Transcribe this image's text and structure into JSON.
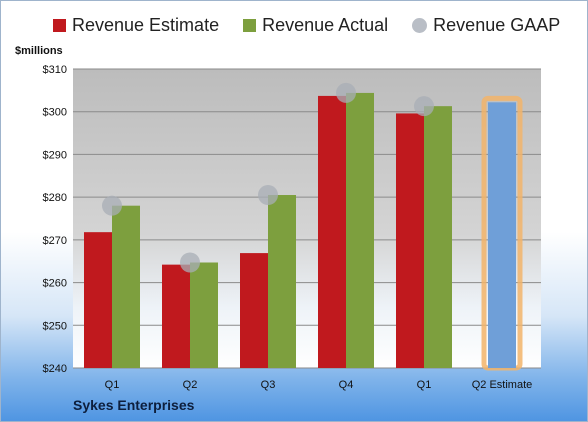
{
  "chart_data": {
    "type": "bar",
    "ylabel": "$millions",
    "ylim": [
      240,
      310
    ],
    "yticks": [
      "$240",
      "$250",
      "$260",
      "$270",
      "$280",
      "$290",
      "$300",
      "$310"
    ],
    "categories": [
      "Q1",
      "Q2",
      "Q3",
      "Q4",
      "Q1",
      "Q2 Estimate"
    ],
    "series": [
      {
        "name": "Revenue Estimate",
        "color": "#c0191e",
        "values": [
          271.8,
          264.2,
          266.9,
          303.7,
          299.6,
          302.2
        ]
      },
      {
        "name": "Revenue Actual",
        "color": "#7d9f3e",
        "values": [
          278.0,
          264.7,
          280.5,
          304.4,
          301.3,
          null
        ]
      },
      {
        "name": "Revenue GAAP",
        "color": "#a8adb6",
        "values": [
          278.0,
          264.7,
          280.5,
          304.4,
          301.3,
          null
        ]
      }
    ],
    "highlight_color": "#6f9fd8",
    "grid": true,
    "legend": "top"
  },
  "footer": {
    "company": "Sykes Enterprises"
  }
}
